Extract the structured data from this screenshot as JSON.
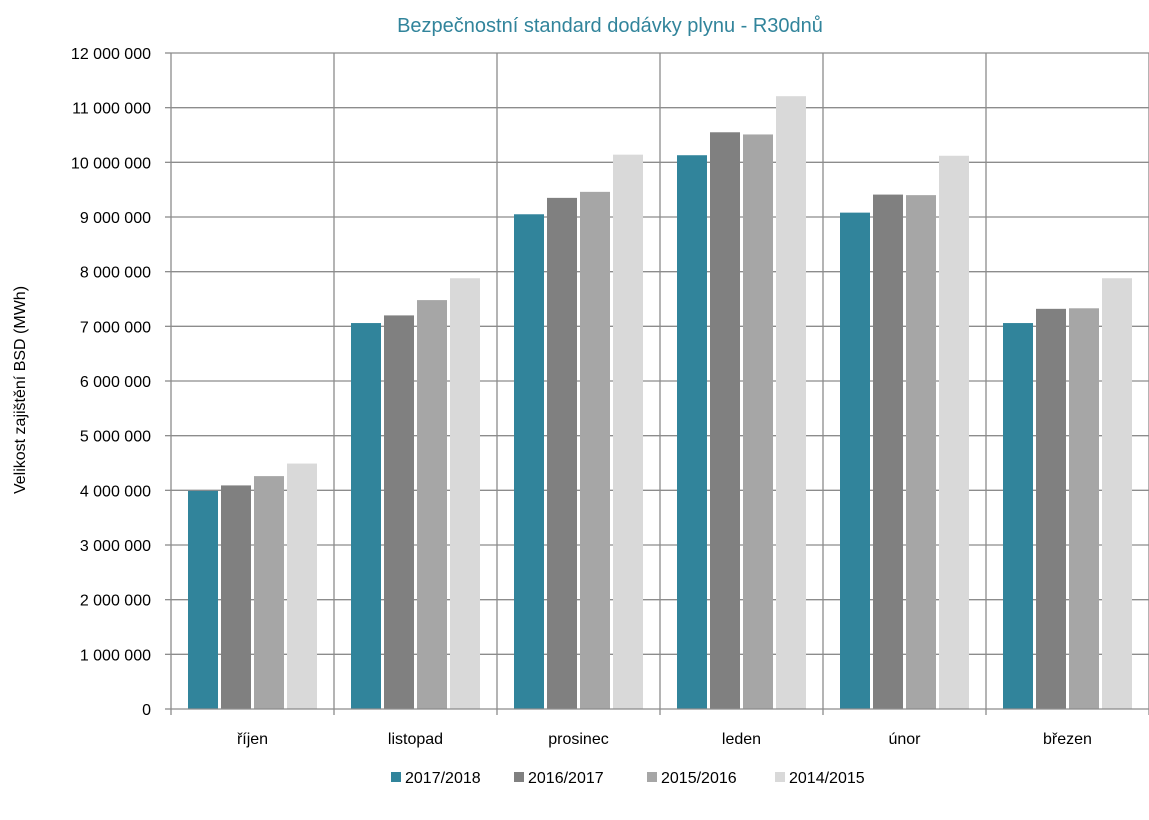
{
  "chart_data": {
    "type": "bar",
    "title": "Bezpečnostní standard dodávky plynu - R30dnů",
    "xlabel": "",
    "ylabel": "Velikost zajištění BSD (MWh)",
    "categories": [
      "říjen",
      "listopad",
      "prosinec",
      "leden",
      "únor",
      "březen"
    ],
    "series": [
      {
        "name": "2017/2018",
        "color": "#31849B",
        "values": [
          3990000,
          7060000,
          9050000,
          10130000,
          9080000,
          7060000
        ]
      },
      {
        "name": "2016/2017",
        "color": "#808080",
        "values": [
          4090000,
          7200000,
          9350000,
          10550000,
          9410000,
          7320000
        ]
      },
      {
        "name": "2015/2016",
        "color": "#A6A6A6",
        "values": [
          4260000,
          7480000,
          9460000,
          10510000,
          9400000,
          7330000
        ]
      },
      {
        "name": "2014/2015",
        "color": "#D9D9D9",
        "values": [
          4490000,
          7880000,
          10140000,
          11210000,
          10120000,
          7880000
        ]
      }
    ],
    "ylim": [
      0,
      12000000
    ],
    "yticks": [
      "0",
      "1 000 000",
      "2 000 000",
      "3 000 000",
      "4 000 000",
      "5 000 000",
      "6 000 000",
      "7 000 000",
      "8 000 000",
      "9 000 000",
      "10 000 000",
      "11 000 000",
      "12 000 000"
    ],
    "grid": true,
    "legend_position": "bottom"
  }
}
